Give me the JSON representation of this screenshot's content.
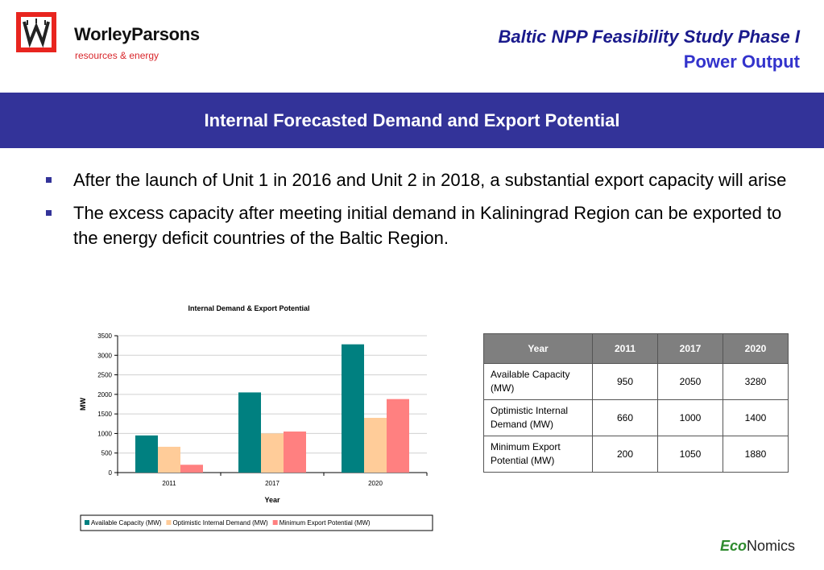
{
  "header": {
    "company": "WorleyParsons",
    "company_sub": "resources & energy",
    "title": "Baltic NPP Feasibility Study Phase I",
    "subtitle": "Power Output"
  },
  "banner": {
    "title": "Internal Forecasted Demand and Export Potential"
  },
  "bullets": [
    "After the launch of Unit 1 in 2016 and Unit 2 in 2018, a substantial export capacity will arise",
    "The excess capacity after meeting initial demand in Kaliningrad Region can be exported to the energy deficit countries of the Baltic Region."
  ],
  "chart_data": {
    "type": "bar",
    "title": "Internal Demand & Export Potential",
    "xlabel": "Year",
    "ylabel": "MW",
    "categories": [
      "2011",
      "2017",
      "2020"
    ],
    "ylim": [
      0,
      3500
    ],
    "yticks": [
      0,
      500,
      1000,
      1500,
      2000,
      2500,
      3000,
      3500
    ],
    "grid": true,
    "legend_position": "bottom",
    "series": [
      {
        "name": "Available Capacity (MW)",
        "values": [
          950,
          2050,
          3280
        ],
        "color": "#008080"
      },
      {
        "name": "Optimistic Internal Demand (MW)",
        "values": [
          660,
          1000,
          1400
        ],
        "color": "#ffcc99"
      },
      {
        "name": "Minimum Export Potential (MW)",
        "values": [
          200,
          1050,
          1880
        ],
        "color": "#ff8080"
      }
    ]
  },
  "table": {
    "header": [
      "Year",
      "2011",
      "2017",
      "2020"
    ],
    "rows": [
      [
        "Available Capacity (MW)",
        "950",
        "2050",
        "3280"
      ],
      [
        "Optimistic Internal Demand (MW)",
        "660",
        "1000",
        "1400"
      ],
      [
        "Minimum Export Potential (MW)",
        "200",
        "1050",
        "1880"
      ]
    ]
  },
  "footer": {
    "brand_prefix": "Eco",
    "brand_suffix": "Nomics"
  },
  "colors": {
    "banner": "#333399",
    "logo_red": "#e8251f",
    "title_blue": "#1a1a8c"
  }
}
